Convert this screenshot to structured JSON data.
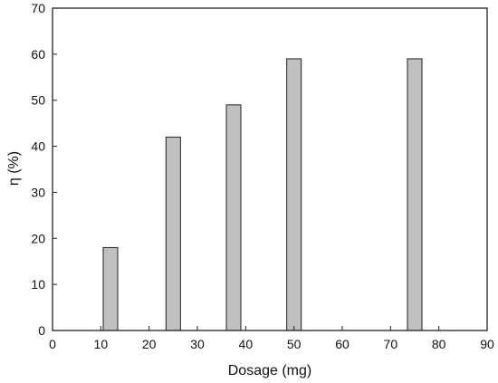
{
  "chart_data": {
    "type": "bar",
    "title": "",
    "xlabel": "Dosage (mg)",
    "ylabel": "η (%)",
    "x": [
      12,
      25,
      37.5,
      50,
      75
    ],
    "values": [
      18,
      42,
      49,
      59,
      59
    ],
    "xlim": [
      0,
      90
    ],
    "ylim": [
      0,
      70
    ],
    "xticks": [
      0,
      10,
      20,
      30,
      40,
      50,
      60,
      70,
      80,
      90
    ],
    "yticks": [
      0,
      10,
      20,
      30,
      40,
      50,
      60,
      70
    ],
    "grid": false,
    "legend": "none",
    "colors": {
      "bar_fill": "#c0c0c0",
      "bar_stroke": "#222222",
      "axis": "#222222"
    }
  }
}
